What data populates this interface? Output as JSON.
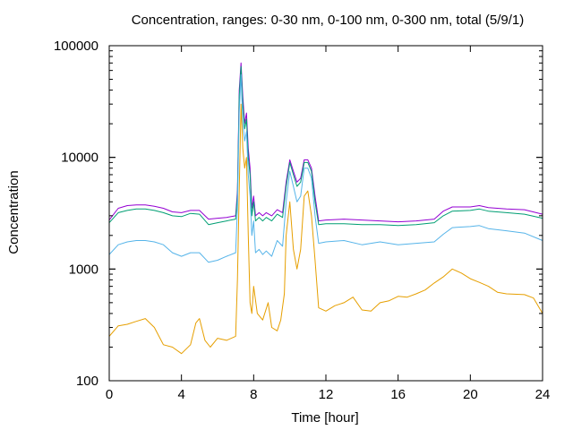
{
  "chart_data": {
    "type": "line",
    "title": "Concentration, ranges: 0-30 nm, 0-100 nm, 0-300 nm, total (5/9/1)",
    "xlabel": "Time [hour]",
    "ylabel": "Concentration",
    "xlim": [
      0,
      24
    ],
    "ylim": [
      100,
      100000
    ],
    "yscale": "log",
    "grid": false,
    "x_ticks": [
      0,
      4,
      8,
      12,
      16,
      20,
      24
    ],
    "x_tick_labels": [
      "0",
      "4",
      "8",
      "12",
      "16",
      "20",
      "24"
    ],
    "y_ticks": [
      100,
      1000,
      10000,
      100000
    ],
    "y_tick_labels": [
      "100",
      "1000",
      "10000",
      "100000"
    ],
    "series": [
      {
        "color": "#9400d3",
        "points": [
          [
            0,
            2750
          ],
          [
            0.5,
            3500
          ],
          [
            1,
            3700
          ],
          [
            1.5,
            3750
          ],
          [
            2,
            3750
          ],
          [
            2.5,
            3650
          ],
          [
            3,
            3500
          ],
          [
            3.5,
            3250
          ],
          [
            4,
            3200
          ],
          [
            4.5,
            3350
          ],
          [
            5,
            3350
          ],
          [
            5.5,
            2800
          ],
          [
            6,
            2850
          ],
          [
            6.5,
            2900
          ],
          [
            7,
            3000
          ],
          [
            7.1,
            5000
          ],
          [
            7.2,
            40000
          ],
          [
            7.3,
            70000
          ],
          [
            7.4,
            35000
          ],
          [
            7.5,
            20000
          ],
          [
            7.6,
            25000
          ],
          [
            7.7,
            12000
          ],
          [
            7.8,
            8000
          ],
          [
            7.9,
            3500
          ],
          [
            8,
            4500
          ],
          [
            8.1,
            3000
          ],
          [
            8.3,
            3200
          ],
          [
            8.5,
            3000
          ],
          [
            8.7,
            3200
          ],
          [
            9,
            3000
          ],
          [
            9.3,
            3400
          ],
          [
            9.6,
            3200
          ],
          [
            9.8,
            6000
          ],
          [
            10,
            9500
          ],
          [
            10.2,
            7500
          ],
          [
            10.4,
            6000
          ],
          [
            10.6,
            6500
          ],
          [
            10.8,
            9500
          ],
          [
            11,
            9500
          ],
          [
            11.2,
            8000
          ],
          [
            11.4,
            4500
          ],
          [
            11.6,
            2700
          ],
          [
            12,
            2750
          ],
          [
            13,
            2800
          ],
          [
            14,
            2750
          ],
          [
            15,
            2700
          ],
          [
            16,
            2650
          ],
          [
            17,
            2700
          ],
          [
            18,
            2800
          ],
          [
            18.5,
            3300
          ],
          [
            19,
            3600
          ],
          [
            20,
            3600
          ],
          [
            20.5,
            3700
          ],
          [
            21,
            3550
          ],
          [
            22,
            3450
          ],
          [
            23,
            3400
          ],
          [
            24,
            3100
          ]
        ]
      },
      {
        "color": "#009e73",
        "points": [
          [
            0,
            2600
          ],
          [
            0.5,
            3200
          ],
          [
            1,
            3350
          ],
          [
            1.5,
            3450
          ],
          [
            2,
            3450
          ],
          [
            2.5,
            3350
          ],
          [
            3,
            3200
          ],
          [
            3.5,
            3000
          ],
          [
            4,
            2950
          ],
          [
            4.5,
            3150
          ],
          [
            5,
            3100
          ],
          [
            5.5,
            2500
          ],
          [
            6,
            2600
          ],
          [
            6.5,
            2700
          ],
          [
            7,
            2800
          ],
          [
            7.1,
            4500
          ],
          [
            7.2,
            35000
          ],
          [
            7.3,
            65000
          ],
          [
            7.4,
            30000
          ],
          [
            7.5,
            18000
          ],
          [
            7.6,
            22000
          ],
          [
            7.7,
            10000
          ],
          [
            7.8,
            7000
          ],
          [
            7.9,
            3000
          ],
          [
            8,
            4000
          ],
          [
            8.1,
            2700
          ],
          [
            8.3,
            2900
          ],
          [
            8.5,
            2700
          ],
          [
            8.7,
            2900
          ],
          [
            9,
            2700
          ],
          [
            9.3,
            3100
          ],
          [
            9.6,
            2900
          ],
          [
            9.8,
            5500
          ],
          [
            10,
            9000
          ],
          [
            10.2,
            7000
          ],
          [
            10.4,
            5500
          ],
          [
            10.6,
            6000
          ],
          [
            10.8,
            9000
          ],
          [
            11,
            9000
          ],
          [
            11.2,
            7500
          ],
          [
            11.4,
            4000
          ],
          [
            11.6,
            2500
          ],
          [
            12,
            2550
          ],
          [
            13,
            2550
          ],
          [
            14,
            2500
          ],
          [
            15,
            2500
          ],
          [
            16,
            2450
          ],
          [
            17,
            2500
          ],
          [
            18,
            2600
          ],
          [
            18.5,
            3000
          ],
          [
            19,
            3300
          ],
          [
            20,
            3350
          ],
          [
            20.5,
            3450
          ],
          [
            21,
            3300
          ],
          [
            22,
            3200
          ],
          [
            23,
            3100
          ],
          [
            24,
            2850
          ]
        ]
      },
      {
        "color": "#56b4e9",
        "points": [
          [
            0,
            1350
          ],
          [
            0.5,
            1650
          ],
          [
            1,
            1750
          ],
          [
            1.5,
            1800
          ],
          [
            2,
            1800
          ],
          [
            2.5,
            1750
          ],
          [
            3,
            1650
          ],
          [
            3.5,
            1400
          ],
          [
            4,
            1300
          ],
          [
            4.5,
            1400
          ],
          [
            5,
            1400
          ],
          [
            5.5,
            1150
          ],
          [
            6,
            1200
          ],
          [
            6.5,
            1300
          ],
          [
            7,
            1400
          ],
          [
            7.1,
            3500
          ],
          [
            7.2,
            25000
          ],
          [
            7.3,
            55000
          ],
          [
            7.4,
            20000
          ],
          [
            7.5,
            14000
          ],
          [
            7.6,
            17000
          ],
          [
            7.7,
            7000
          ],
          [
            7.8,
            4500
          ],
          [
            7.9,
            2000
          ],
          [
            8,
            2700
          ],
          [
            8.1,
            1400
          ],
          [
            8.3,
            1500
          ],
          [
            8.5,
            1350
          ],
          [
            8.7,
            1450
          ],
          [
            9,
            1300
          ],
          [
            9.3,
            1800
          ],
          [
            9.6,
            1600
          ],
          [
            9.8,
            4000
          ],
          [
            10,
            7500
          ],
          [
            10.2,
            5500
          ],
          [
            10.4,
            4000
          ],
          [
            10.6,
            4500
          ],
          [
            10.8,
            8000
          ],
          [
            11,
            8000
          ],
          [
            11.2,
            6500
          ],
          [
            11.4,
            3000
          ],
          [
            11.6,
            1700
          ],
          [
            12,
            1750
          ],
          [
            13,
            1800
          ],
          [
            14,
            1650
          ],
          [
            15,
            1750
          ],
          [
            16,
            1650
          ],
          [
            17,
            1700
          ],
          [
            18,
            1750
          ],
          [
            18.5,
            2050
          ],
          [
            19,
            2350
          ],
          [
            20,
            2400
          ],
          [
            20.5,
            2450
          ],
          [
            21,
            2300
          ],
          [
            22,
            2200
          ],
          [
            23,
            2100
          ],
          [
            24,
            1800
          ]
        ]
      },
      {
        "color": "#e69f00",
        "points": [
          [
            0,
            250
          ],
          [
            0.5,
            310
          ],
          [
            1,
            320
          ],
          [
            1.5,
            340
          ],
          [
            2,
            360
          ],
          [
            2.5,
            300
          ],
          [
            3,
            210
          ],
          [
            3.5,
            200
          ],
          [
            4,
            175
          ],
          [
            4.5,
            210
          ],
          [
            4.8,
            330
          ],
          [
            5,
            360
          ],
          [
            5.3,
            230
          ],
          [
            5.6,
            200
          ],
          [
            6,
            240
          ],
          [
            6.5,
            230
          ],
          [
            7,
            250
          ],
          [
            7.1,
            800
          ],
          [
            7.2,
            5000
          ],
          [
            7.3,
            30000
          ],
          [
            7.4,
            12000
          ],
          [
            7.5,
            8000
          ],
          [
            7.6,
            10000
          ],
          [
            7.7,
            2000
          ],
          [
            7.8,
            500
          ],
          [
            7.9,
            400
          ],
          [
            8,
            700
          ],
          [
            8.2,
            400
          ],
          [
            8.5,
            350
          ],
          [
            8.8,
            500
          ],
          [
            9,
            300
          ],
          [
            9.3,
            280
          ],
          [
            9.5,
            350
          ],
          [
            9.7,
            600
          ],
          [
            9.8,
            2000
          ],
          [
            10,
            4000
          ],
          [
            10.2,
            1500
          ],
          [
            10.4,
            1000
          ],
          [
            10.6,
            1500
          ],
          [
            10.8,
            4500
          ],
          [
            11,
            5000
          ],
          [
            11.2,
            3000
          ],
          [
            11.4,
            1200
          ],
          [
            11.6,
            450
          ],
          [
            12,
            420
          ],
          [
            12.5,
            470
          ],
          [
            13,
            500
          ],
          [
            13.5,
            560
          ],
          [
            14,
            430
          ],
          [
            14.5,
            420
          ],
          [
            15,
            500
          ],
          [
            15.5,
            520
          ],
          [
            16,
            570
          ],
          [
            16.5,
            560
          ],
          [
            17,
            600
          ],
          [
            17.5,
            650
          ],
          [
            18,
            750
          ],
          [
            18.5,
            850
          ],
          [
            19,
            1000
          ],
          [
            19.5,
            920
          ],
          [
            20,
            820
          ],
          [
            20.5,
            760
          ],
          [
            21,
            700
          ],
          [
            21.5,
            620
          ],
          [
            22,
            600
          ],
          [
            23,
            590
          ],
          [
            23.5,
            550
          ],
          [
            24,
            400
          ]
        ]
      }
    ]
  }
}
